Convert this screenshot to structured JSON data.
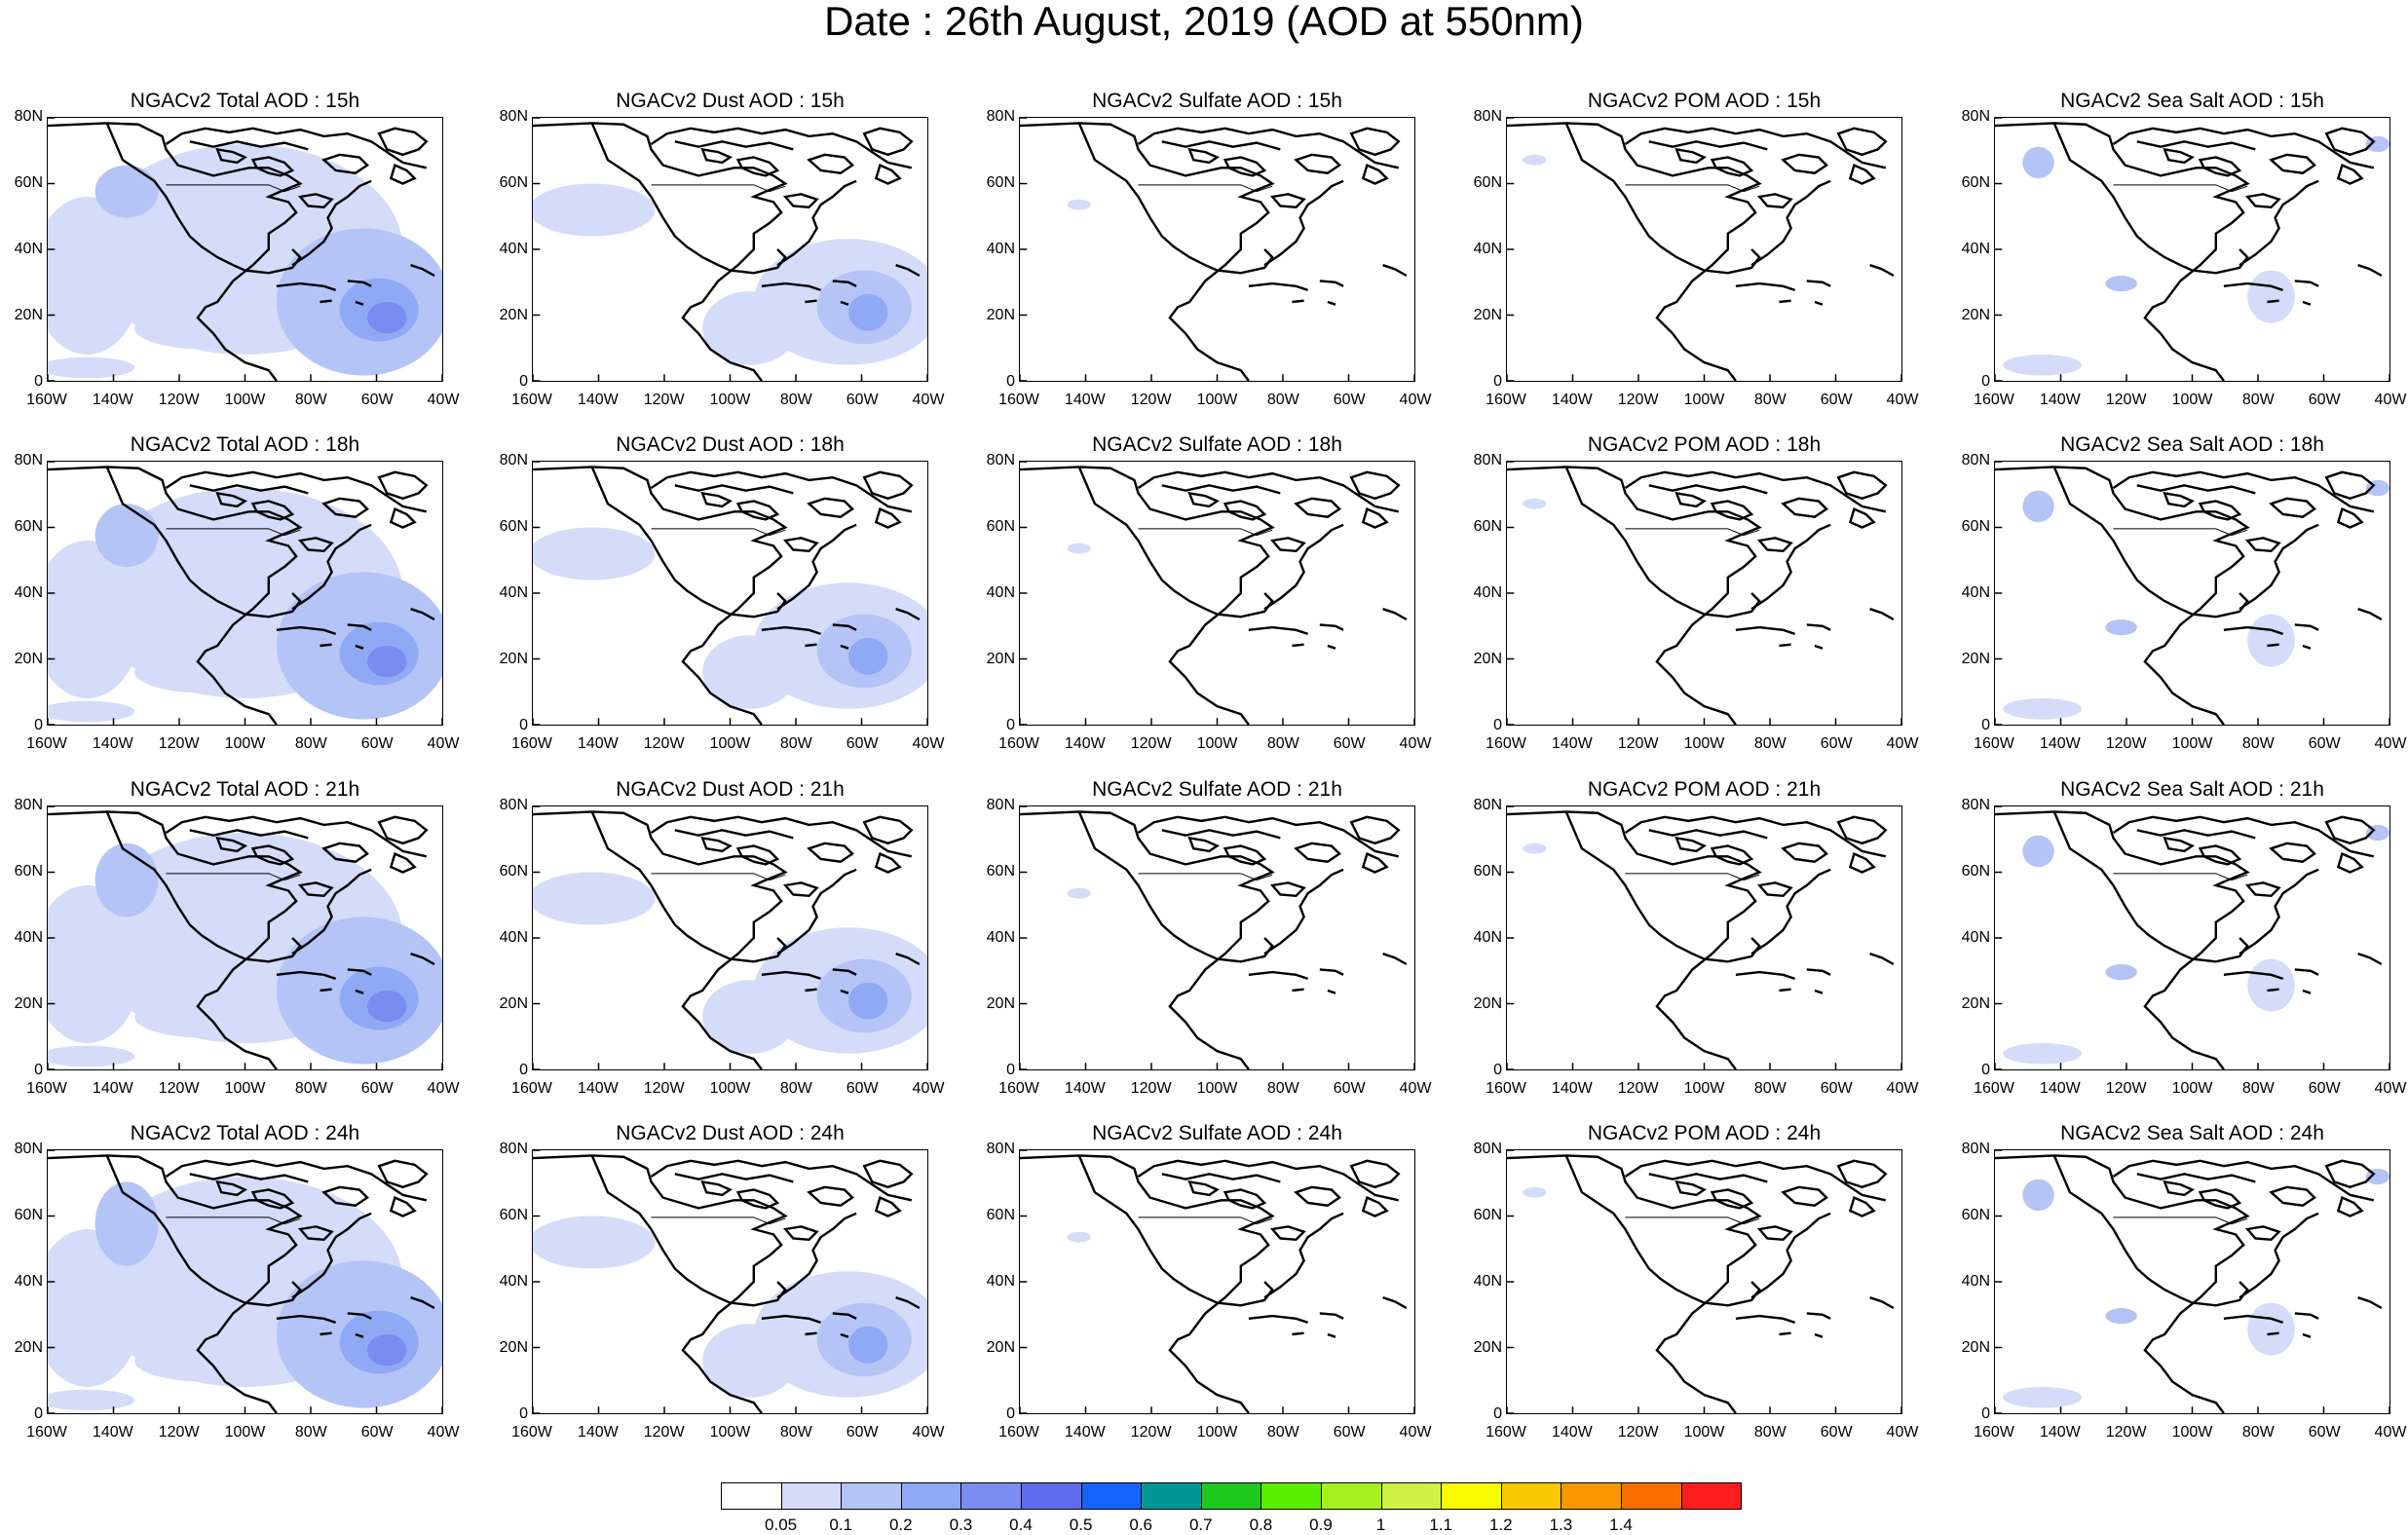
{
  "title": "Date : 26th August, 2019 (AOD at 550nm)",
  "panels": [
    [
      "NGACv2 Total AOD : 15h",
      "NGACv2 Dust AOD : 15h",
      "NGACv2 Sulfate AOD : 15h",
      "NGACv2 POM AOD : 15h",
      "NGACv2 Sea Salt AOD : 15h"
    ],
    [
      "NGACv2 Total AOD : 18h",
      "NGACv2 Dust AOD : 18h",
      "NGACv2 Sulfate AOD : 18h",
      "NGACv2 POM AOD : 18h",
      "NGACv2 Sea Salt AOD : 18h"
    ],
    [
      "NGACv2 Total AOD : 21h",
      "NGACv2 Dust AOD : 21h",
      "NGACv2 Sulfate AOD : 21h",
      "NGACv2 POM AOD : 21h",
      "NGACv2 Sea Salt AOD : 21h"
    ],
    [
      "NGACv2 Total AOD : 24h",
      "NGACv2 Dust AOD : 24h",
      "NGACv2 Sulfate AOD : 24h",
      "NGACv2 POM AOD : 24h",
      "NGACv2 Sea Salt  AOD : 24h"
    ]
  ],
  "lat_ticks": [
    "80N",
    "60N",
    "40N",
    "20N",
    "0"
  ],
  "lon_ticks": [
    "160W",
    "140W",
    "120W",
    "100W",
    "80W",
    "60W",
    "40W"
  ],
  "map_extent": {
    "lon": [
      -160,
      -40
    ],
    "lat": [
      0,
      80
    ]
  },
  "colorbar": {
    "colors": [
      "#ffffff",
      "#d4dcfa",
      "#b4c4f7",
      "#8fa9f4",
      "#7a8cf0",
      "#5e6ced",
      "#1464ff",
      "#009696",
      "#1ec81e",
      "#5aef00",
      "#a5f01e",
      "#cff046",
      "#fafa00",
      "#fac800",
      "#fa9600",
      "#fa6e00",
      "#ff1e1e"
    ],
    "labels": [
      "0.05",
      "0.1",
      "0.2",
      "0.3",
      "0.4",
      "0.5",
      "0.6",
      "0.7",
      "0.8",
      "0.9",
      "1",
      "1.1",
      "1.2",
      "1.3",
      "1.4"
    ]
  }
}
